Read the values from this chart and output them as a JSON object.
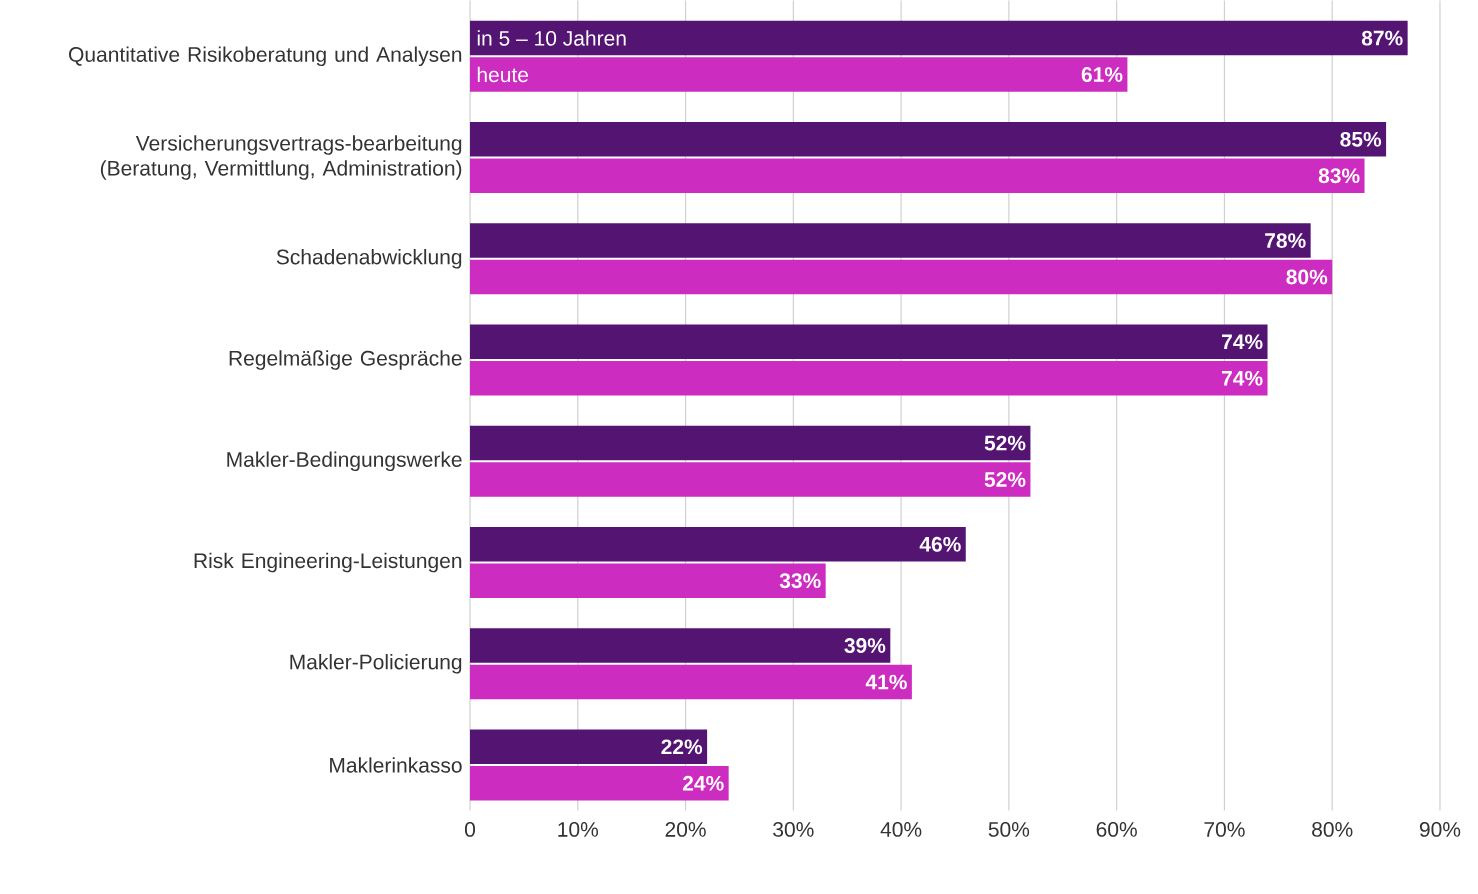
{
  "chart_data": {
    "type": "bar",
    "orientation": "horizontal",
    "categories": [
      "Quantitative Risikoberatung und Analysen",
      "Versicherungsvertrags-bearbeitung (Beratung, Vermittlung, Administration)",
      "Schadenabwicklung",
      "Regelmäßige Gespräche",
      "Makler-Bedingungswerke",
      "Risk Engineering-Leistungen",
      "Makler-Policierung",
      "Maklerinkasso"
    ],
    "series": [
      {
        "name": "in 5 – 10 Jahren",
        "color": "#541472",
        "values": [
          87,
          85,
          78,
          74,
          52,
          46,
          39,
          22
        ],
        "value_labels": [
          "87%",
          "85%",
          "78%",
          "74%",
          "52%",
          "46%",
          "39%",
          "22%"
        ]
      },
      {
        "name": "heute",
        "color": "#cc2cbf",
        "values": [
          61,
          83,
          80,
          74,
          52,
          33,
          41,
          24
        ],
        "value_labels": [
          "61%",
          "83%",
          "80%",
          "74%",
          "52%",
          "33%",
          "41%",
          "24%"
        ]
      }
    ],
    "xlim": [
      0,
      90
    ],
    "xticks": [
      {
        "value": 0,
        "label": "0"
      },
      {
        "value": 10,
        "label": "10%"
      },
      {
        "value": 20,
        "label": "20%"
      },
      {
        "value": 30,
        "label": "30%"
      },
      {
        "value": 40,
        "label": "40%"
      },
      {
        "value": 50,
        "label": "50%"
      },
      {
        "value": 60,
        "label": "60%"
      },
      {
        "value": 70,
        "label": "70%"
      },
      {
        "value": 80,
        "label": "80%"
      },
      {
        "value": 90,
        "label": "90%"
      }
    ],
    "grid": "x"
  }
}
